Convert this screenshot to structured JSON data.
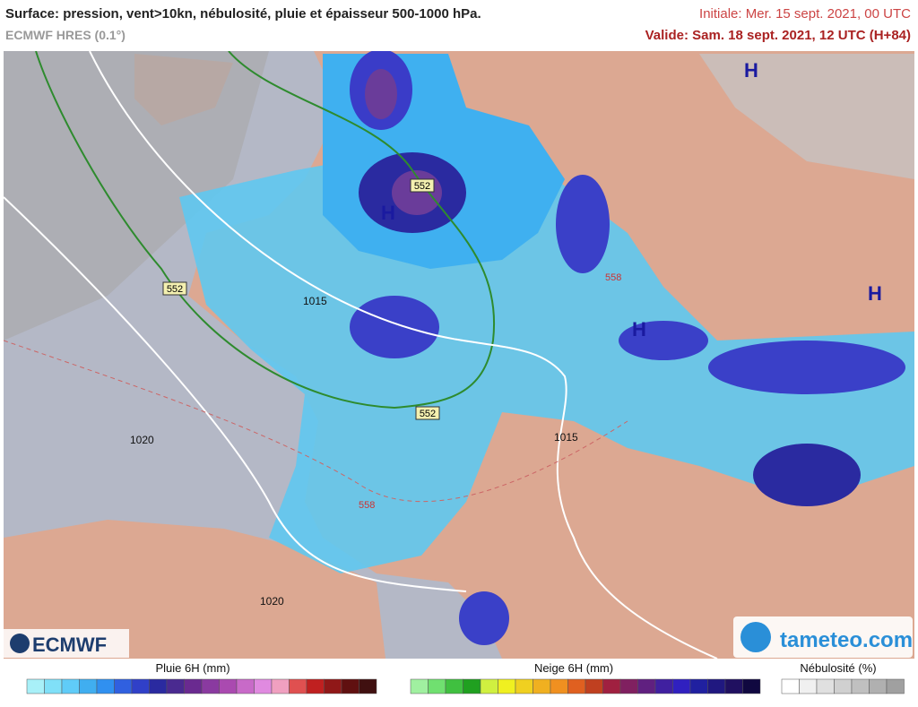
{
  "header": {
    "title": "Surface: pression, vent>10kn, nébulosité, pluie et épaisseur 500-1000 hPa.",
    "model": "ECMWF HRES (0.1°)",
    "initial": "Initiale: Mer. 15 sept. 2021, 00 UTC",
    "valid": "Valide: Sam. 18 sept. 2021, 12 UTC (H+84)"
  },
  "map": {
    "labels": [
      "H",
      "H",
      "H",
      "H",
      "552",
      "552",
      "552",
      "558",
      "558",
      "1015",
      "1015",
      "1020",
      "1020"
    ]
  },
  "logos": {
    "left": "ECMWF",
    "right": "tameteo.com"
  },
  "legend": {
    "rain": "Pluie 6H (mm)",
    "snow": "Neige 6H (mm)",
    "cloud": "Nébulosité (%)"
  }
}
